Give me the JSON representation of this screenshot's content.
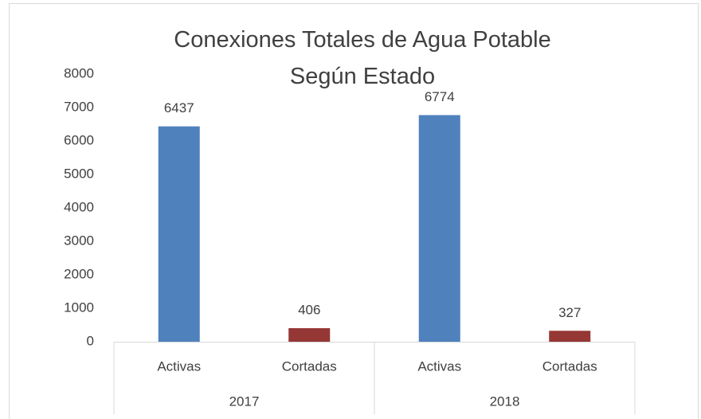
{
  "chart_data": {
    "type": "bar",
    "title": "Conexiones Totales de Agua Potable Según Estado",
    "categories": [
      "Activas",
      "Cortadas",
      "Activas",
      "Cortadas"
    ],
    "groups": [
      "2017",
      "2018"
    ],
    "values": [
      6437,
      406,
      6774,
      327
    ],
    "colors": [
      "#4f81bd",
      "#953735",
      "#4f81bd",
      "#953735"
    ],
    "ylim": [
      0,
      8000
    ],
    "yticks": [
      0,
      1000,
      2000,
      3000,
      4000,
      5000,
      6000,
      7000,
      8000
    ],
    "grid": false
  }
}
